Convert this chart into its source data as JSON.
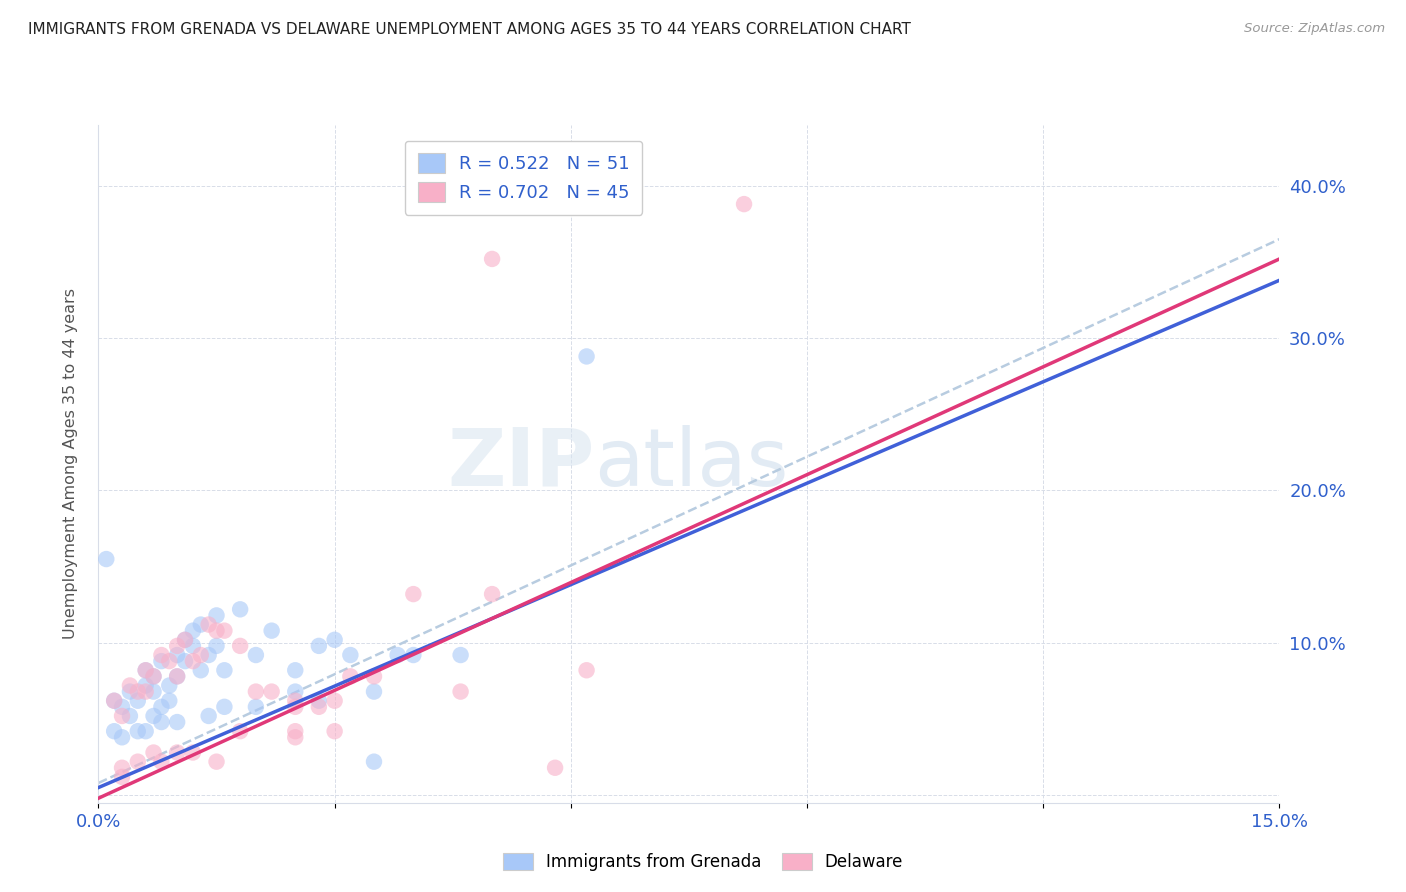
{
  "title": "IMMIGRANTS FROM GRENADA VS DELAWARE UNEMPLOYMENT AMONG AGES 35 TO 44 YEARS CORRELATION CHART",
  "source": "Source: ZipAtlas.com",
  "ylabel": "Unemployment Among Ages 35 to 44 years",
  "xlim": [
    0.0,
    0.15
  ],
  "ylim": [
    -0.005,
    0.44
  ],
  "xticks": [
    0.0,
    0.03,
    0.06,
    0.09,
    0.12,
    0.15
  ],
  "yticks": [
    0.0,
    0.1,
    0.2,
    0.3,
    0.4
  ],
  "ytick_labels_right": [
    "",
    "10.0%",
    "20.0%",
    "30.0%",
    "40.0%"
  ],
  "xtick_labels": [
    "0.0%",
    "",
    "",
    "",
    "",
    "15.0%"
  ],
  "legend_blue_label": "Immigrants from Grenada",
  "legend_pink_label": "Delaware",
  "R_blue": 0.522,
  "N_blue": 51,
  "R_pink": 0.702,
  "N_pink": 45,
  "blue_color": "#a8c8f8",
  "pink_color": "#f8b0c8",
  "blue_line_color": "#4060d8",
  "pink_line_color": "#e03878",
  "dashed_line_color": "#b8cce0",
  "watermark_zip": "ZIP",
  "watermark_atlas": "atlas",
  "blue_points": [
    [
      0.002,
      0.062
    ],
    [
      0.003,
      0.058
    ],
    [
      0.004,
      0.068
    ],
    [
      0.005,
      0.062
    ],
    [
      0.006,
      0.072
    ],
    [
      0.006,
      0.082
    ],
    [
      0.007,
      0.068
    ],
    [
      0.007,
      0.078
    ],
    [
      0.008,
      0.088
    ],
    [
      0.008,
      0.058
    ],
    [
      0.009,
      0.072
    ],
    [
      0.009,
      0.062
    ],
    [
      0.01,
      0.092
    ],
    [
      0.01,
      0.078
    ],
    [
      0.011,
      0.102
    ],
    [
      0.011,
      0.088
    ],
    [
      0.012,
      0.108
    ],
    [
      0.012,
      0.098
    ],
    [
      0.013,
      0.112
    ],
    [
      0.013,
      0.082
    ],
    [
      0.014,
      0.092
    ],
    [
      0.015,
      0.098
    ],
    [
      0.015,
      0.118
    ],
    [
      0.016,
      0.082
    ],
    [
      0.018,
      0.122
    ],
    [
      0.02,
      0.092
    ],
    [
      0.022,
      0.108
    ],
    [
      0.025,
      0.082
    ],
    [
      0.025,
      0.068
    ],
    [
      0.028,
      0.098
    ],
    [
      0.03,
      0.102
    ],
    [
      0.032,
      0.092
    ],
    [
      0.035,
      0.068
    ],
    [
      0.038,
      0.092
    ],
    [
      0.04,
      0.092
    ],
    [
      0.002,
      0.042
    ],
    [
      0.003,
      0.038
    ],
    [
      0.004,
      0.052
    ],
    [
      0.005,
      0.042
    ],
    [
      0.006,
      0.042
    ],
    [
      0.007,
      0.052
    ],
    [
      0.008,
      0.048
    ],
    [
      0.01,
      0.048
    ],
    [
      0.014,
      0.052
    ],
    [
      0.016,
      0.058
    ],
    [
      0.02,
      0.058
    ],
    [
      0.028,
      0.062
    ],
    [
      0.035,
      0.022
    ],
    [
      0.046,
      0.092
    ],
    [
      0.062,
      0.288
    ],
    [
      0.001,
      0.155
    ]
  ],
  "pink_points": [
    [
      0.002,
      0.062
    ],
    [
      0.003,
      0.052
    ],
    [
      0.004,
      0.072
    ],
    [
      0.005,
      0.068
    ],
    [
      0.006,
      0.082
    ],
    [
      0.006,
      0.068
    ],
    [
      0.007,
      0.078
    ],
    [
      0.008,
      0.092
    ],
    [
      0.009,
      0.088
    ],
    [
      0.01,
      0.098
    ],
    [
      0.01,
      0.078
    ],
    [
      0.011,
      0.102
    ],
    [
      0.012,
      0.088
    ],
    [
      0.013,
      0.092
    ],
    [
      0.014,
      0.112
    ],
    [
      0.015,
      0.108
    ],
    [
      0.016,
      0.108
    ],
    [
      0.018,
      0.098
    ],
    [
      0.02,
      0.068
    ],
    [
      0.022,
      0.068
    ],
    [
      0.025,
      0.062
    ],
    [
      0.025,
      0.058
    ],
    [
      0.028,
      0.058
    ],
    [
      0.03,
      0.062
    ],
    [
      0.032,
      0.078
    ],
    [
      0.035,
      0.078
    ],
    [
      0.04,
      0.132
    ],
    [
      0.003,
      0.018
    ],
    [
      0.005,
      0.022
    ],
    [
      0.007,
      0.028
    ],
    [
      0.008,
      0.022
    ],
    [
      0.01,
      0.028
    ],
    [
      0.012,
      0.028
    ],
    [
      0.015,
      0.022
    ],
    [
      0.018,
      0.042
    ],
    [
      0.025,
      0.042
    ],
    [
      0.03,
      0.042
    ],
    [
      0.05,
      0.132
    ],
    [
      0.062,
      0.082
    ],
    [
      0.082,
      0.388
    ],
    [
      0.05,
      0.352
    ],
    [
      0.046,
      0.068
    ],
    [
      0.058,
      0.018
    ],
    [
      0.003,
      0.012
    ],
    [
      0.025,
      0.038
    ]
  ],
  "blue_line": {
    "x0": 0.0,
    "y0": 0.005,
    "x1": 0.15,
    "y1": 0.338
  },
  "pink_line": {
    "x0": 0.0,
    "y0": -0.002,
    "x1": 0.15,
    "y1": 0.352
  },
  "dashed_line": {
    "x0": 0.0,
    "y0": 0.008,
    "x1": 0.15,
    "y1": 0.365
  }
}
